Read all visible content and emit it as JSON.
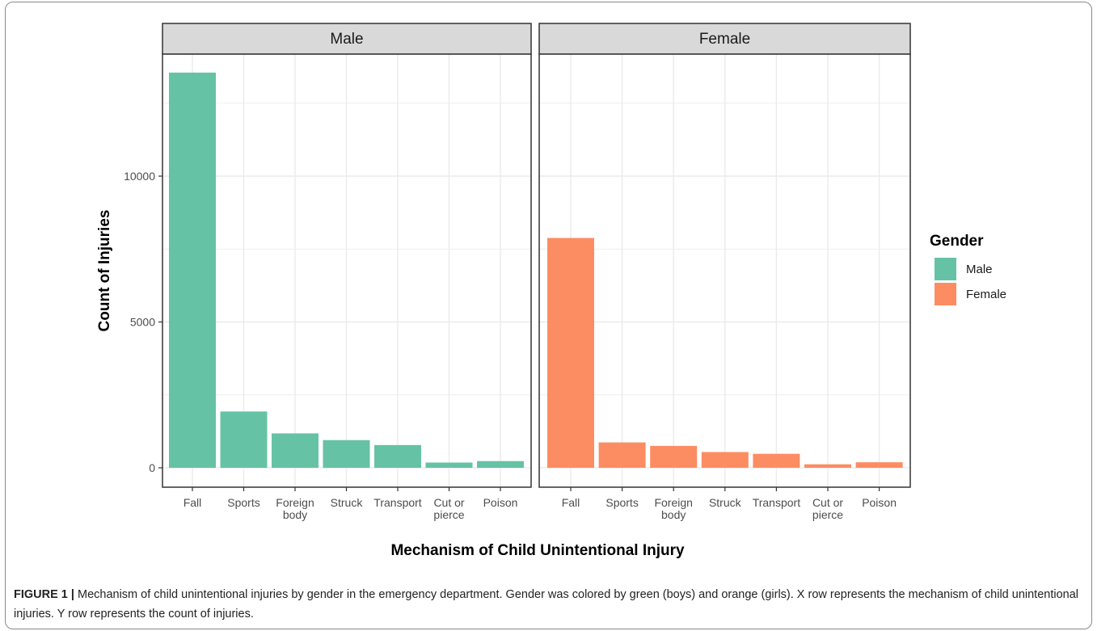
{
  "chart_data": {
    "type": "bar",
    "xlabel": "Mechanism of Child Unintentional Injury",
    "ylabel": "Count of Injuries",
    "ylim": [
      0,
      13800
    ],
    "yticks": [
      0,
      5000,
      10000
    ],
    "grid": true,
    "legend": {
      "title": "Gender",
      "position": "right",
      "entries": [
        {
          "label": "Male",
          "color": "#66c2a5"
        },
        {
          "label": "Female",
          "color": "#fc8d62"
        }
      ]
    },
    "categories": [
      [
        "Fall"
      ],
      [
        "Sports"
      ],
      [
        "Foreign",
        "body"
      ],
      [
        "Struck"
      ],
      [
        "Transport"
      ],
      [
        "Cut or",
        "pierce"
      ],
      [
        "Poison"
      ]
    ],
    "facets": [
      {
        "label": "Male",
        "color": "#66c2a5",
        "values": [
          13550,
          1930,
          1180,
          950,
          780,
          180,
          230
        ]
      },
      {
        "label": "Female",
        "color": "#fc8d62",
        "values": [
          7880,
          870,
          750,
          540,
          480,
          120,
          190
        ]
      }
    ]
  },
  "caption": {
    "label": "FIGURE 1 |",
    "text": " Mechanism of child unintentional injuries by gender in the emergency department. Gender was colored by green (boys) and orange (girls). X row represents the mechanism of child unintentional injuries. Y row represents the count of injuries."
  }
}
